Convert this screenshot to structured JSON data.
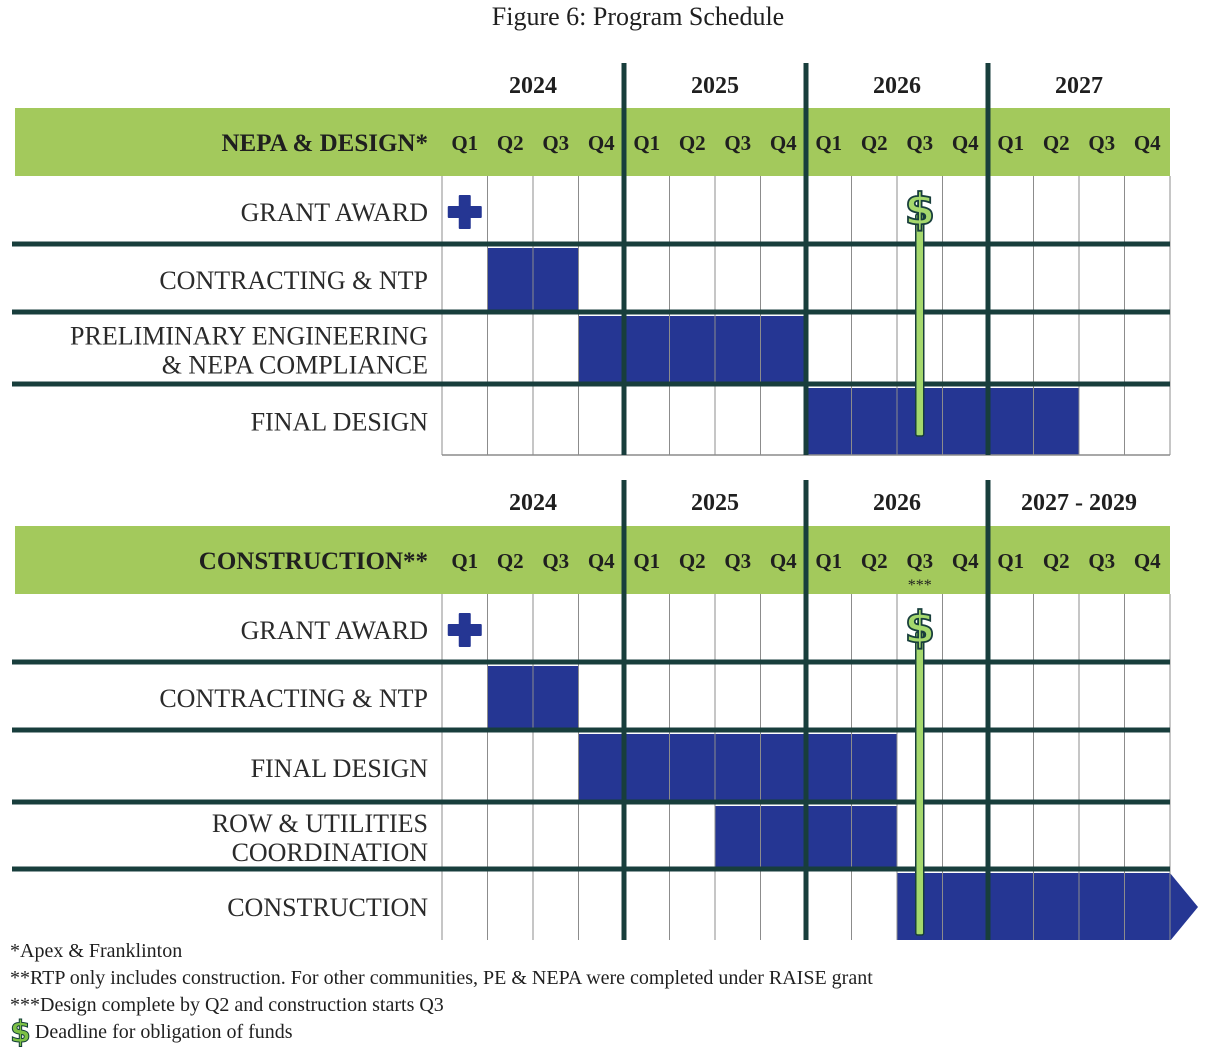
{
  "title": "Figure 6: Program Schedule",
  "colors": {
    "header_band": "#a3c95c",
    "bar": "#253693",
    "separator": "#183e3c",
    "milestone_line": "#a5d86d",
    "grid": "#8c8c8c",
    "plus_icon": "#253693"
  },
  "quarters": [
    "Q1",
    "Q2",
    "Q3",
    "Q4"
  ],
  "sections": [
    {
      "id": "nepa",
      "header_label": "NEPA & DESIGN*",
      "years": [
        "2024",
        "2025",
        "2026",
        "2027"
      ],
      "milestone_quarter": 11,
      "milestone_note": "",
      "rows": [
        {
          "label": [
            "GRANT AWARD"
          ],
          "icon": "plus-icon",
          "bar": null
        },
        {
          "label": [
            "CONTRACTING & NTP"
          ],
          "bar": [
            2,
            3
          ]
        },
        {
          "label": [
            "PRELIMINARY ENGINEERING",
            "& NEPA COMPLIANCE"
          ],
          "bar": [
            4,
            8
          ]
        },
        {
          "label": [
            "FINAL DESIGN"
          ],
          "bar": [
            9,
            14
          ]
        }
      ]
    },
    {
      "id": "construction",
      "header_label": "CONSTRUCTION**",
      "years": [
        "2024",
        "2025",
        "2026",
        "2027 - 2029"
      ],
      "milestone_quarter": 11,
      "milestone_note": "***",
      "rows": [
        {
          "label": [
            "GRANT AWARD"
          ],
          "icon": "plus-icon",
          "bar": null
        },
        {
          "label": [
            "CONTRACTING & NTP"
          ],
          "bar": [
            2,
            3
          ]
        },
        {
          "label": [
            "FINAL DESIGN"
          ],
          "bar": [
            4,
            10
          ]
        },
        {
          "label": [
            "ROW & UTILITIES",
            "COORDINATION"
          ],
          "bar": [
            7,
            10
          ]
        },
        {
          "label": [
            "CONSTRUCTION"
          ],
          "bar": [
            11,
            16
          ],
          "arrow": true
        }
      ]
    }
  ],
  "milestone_symbol": "$",
  "footnotes": [
    "*Apex & Franklinton",
    "**RTP only includes construction. For other communities, PE & NEPA were completed under RAISE grant",
    "***Design complete by Q2 and construction starts Q3"
  ],
  "legend": {
    "symbol": "$",
    "text": "Deadline for obligation of funds"
  }
}
